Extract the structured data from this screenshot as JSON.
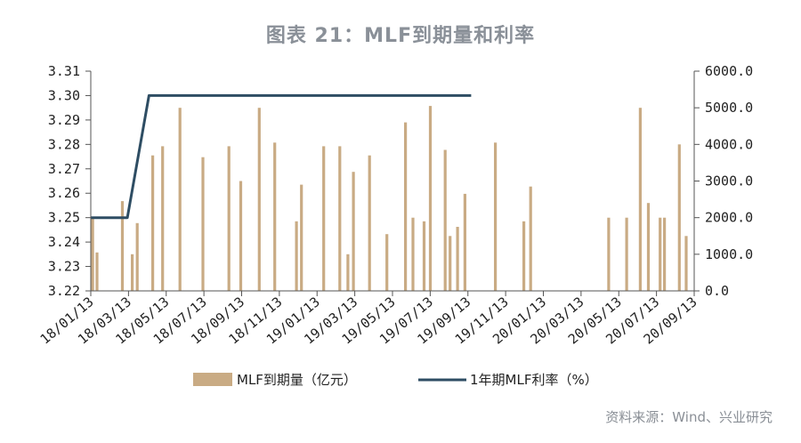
{
  "title": "图表 21：MLF到期量和利率",
  "source": "资料来源：Wind、兴业研究",
  "colors": {
    "bar": "#c9ab84",
    "line": "#2e4d63",
    "axis": "#555555",
    "title": "#8a9098"
  },
  "chart_data": {
    "type": "bar+line",
    "x_tick_labels": [
      "18/01/13",
      "18/03/13",
      "18/05/13",
      "18/07/13",
      "18/09/13",
      "18/11/13",
      "19/01/13",
      "19/03/13",
      "19/05/13",
      "19/07/13",
      "19/09/13",
      "19/11/13",
      "20/01/13",
      "20/03/13",
      "20/05/13",
      "20/07/13",
      "20/09/13"
    ],
    "x_range": [
      "2018-01-13",
      "2020-09-13"
    ],
    "y_left": {
      "min": 3.22,
      "max": 3.31,
      "ticks": [
        "3.22",
        "3.23",
        "3.24",
        "3.25",
        "3.26",
        "3.27",
        "3.28",
        "3.29",
        "3.30",
        "3.31"
      ]
    },
    "y_right": {
      "min": 0,
      "max": 6000,
      "ticks": [
        "0.0",
        "1000.0",
        "2000.0",
        "3000.0",
        "4000.0",
        "5000.0",
        "6000.0"
      ]
    },
    "series": [
      {
        "name": "MLF到期量（亿元）",
        "type": "bar",
        "axis": "right",
        "points": [
          {
            "date": "2018-01-16",
            "value": 2000
          },
          {
            "date": "2018-01-23",
            "value": 1050
          },
          {
            "date": "2018-03-05",
            "value": 2450
          },
          {
            "date": "2018-03-21",
            "value": 1000
          },
          {
            "date": "2018-03-29",
            "value": 1850
          },
          {
            "date": "2018-04-23",
            "value": 3700
          },
          {
            "date": "2018-05-09",
            "value": 3950
          },
          {
            "date": "2018-06-06",
            "value": 5000
          },
          {
            "date": "2018-07-13",
            "value": 3650
          },
          {
            "date": "2018-08-24",
            "value": 3950
          },
          {
            "date": "2018-09-12",
            "value": 3000
          },
          {
            "date": "2018-10-12",
            "value": 5000
          },
          {
            "date": "2018-11-06",
            "value": 4050
          },
          {
            "date": "2018-12-11",
            "value": 1900
          },
          {
            "date": "2018-12-19",
            "value": 2900
          },
          {
            "date": "2019-01-24",
            "value": 3950
          },
          {
            "date": "2019-02-19",
            "value": 3950
          },
          {
            "date": "2019-03-04",
            "value": 1000
          },
          {
            "date": "2019-03-13",
            "value": 3250
          },
          {
            "date": "2019-04-08",
            "value": 3700
          },
          {
            "date": "2019-05-06",
            "value": 1550
          },
          {
            "date": "2019-06-05",
            "value": 4600
          },
          {
            "date": "2019-06-17",
            "value": 2000
          },
          {
            "date": "2019-07-05",
            "value": 1900
          },
          {
            "date": "2019-07-15",
            "value": 5050
          },
          {
            "date": "2019-08-08",
            "value": 3850
          },
          {
            "date": "2019-08-16",
            "value": 1500
          },
          {
            "date": "2019-08-28",
            "value": 1750
          },
          {
            "date": "2019-09-09",
            "value": 2650
          },
          {
            "date": "2019-10-28",
            "value": 4050
          },
          {
            "date": "2019-12-13",
            "value": 1900
          },
          {
            "date": "2019-12-24",
            "value": 2850
          },
          {
            "date": "2020-04-28",
            "value": 2000
          },
          {
            "date": "2020-05-27",
            "value": 2000
          },
          {
            "date": "2020-06-18",
            "value": 5000
          },
          {
            "date": "2020-07-01",
            "value": 2400
          },
          {
            "date": "2020-07-20",
            "value": 2000
          },
          {
            "date": "2020-07-27",
            "value": 2000
          },
          {
            "date": "2020-08-20",
            "value": 4000
          },
          {
            "date": "2020-08-31",
            "value": 1500
          }
        ]
      },
      {
        "name": "1年期MLF利率（%）",
        "type": "line",
        "axis": "left",
        "points": [
          {
            "date": "2018-01-13",
            "value": 3.25
          },
          {
            "date": "2018-03-13",
            "value": 3.25
          },
          {
            "date": "2018-04-17",
            "value": 3.3
          },
          {
            "date": "2019-09-19",
            "value": 3.3
          }
        ]
      }
    ],
    "legend": {
      "position": "bottom",
      "items": [
        "MLF到期量（亿元）",
        "1年期MLF利率（%）"
      ]
    },
    "grid": false
  }
}
